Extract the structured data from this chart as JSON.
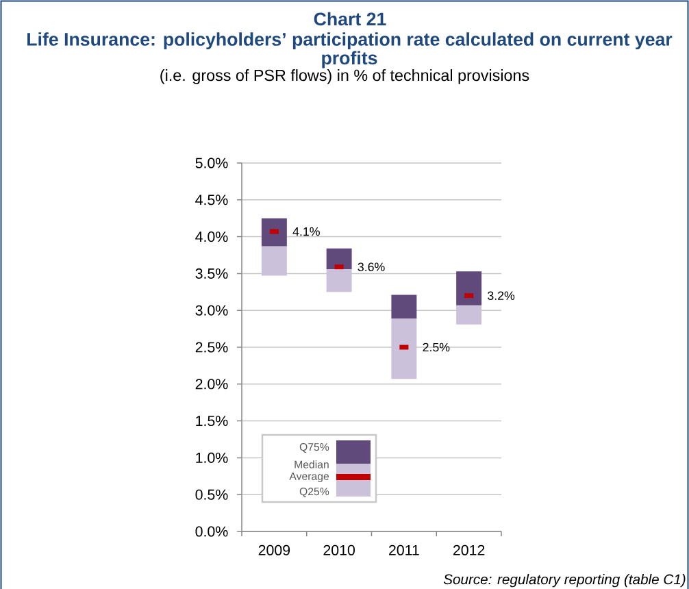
{
  "chart_data": {
    "type": "bar",
    "title": "Life Insurance: policyholders’ participation rate calculated on current year profits",
    "subtitle": "(i.e. gross of PSR flows) in % of technical provisions",
    "annotations": [
      "Chart 21",
      "Median",
      "Source: regulatory reporting (table C1)"
    ],
    "categories": [
      "2009",
      "2010",
      "2011",
      "2012"
    ],
    "series": [
      {
        "name": "Q25%",
        "color": "#ccc1da",
        "base": [
          3.47,
          3.25,
          2.07,
          2.81
        ],
        "values": [
          0.4,
          0.31,
          0.82,
          0.26
        ]
      },
      {
        "name": "Q75%",
        "color": "#604a7b",
        "base": [
          3.87,
          3.56,
          2.89,
          3.07
        ],
        "values": [
          0.38,
          0.28,
          0.32,
          0.46
        ]
      },
      {
        "type": "scatter",
        "name": "Average",
        "color": "#c00000",
        "values": [
          4.07,
          3.59,
          2.5,
          3.2
        ],
        "value_labels": [
          "4.1%",
          "3.6%",
          "2.5%",
          "3.2%"
        ]
      }
    ],
    "ylim": [
      0,
      5
    ],
    "yticks": [
      {
        "value": 0,
        "label": "0.0%"
      },
      {
        "value": 0.5,
        "label": "0.5%"
      },
      {
        "value": 1,
        "label": "1.0%"
      },
      {
        "value": 1.5,
        "label": "1.5%"
      },
      {
        "value": 2,
        "label": "2.0%"
      },
      {
        "value": 2.5,
        "label": "2.5%"
      },
      {
        "value": 3,
        "label": "3.0%"
      },
      {
        "value": 3.5,
        "label": "3.5%"
      },
      {
        "value": 4,
        "label": "4.0%"
      },
      {
        "value": 4.5,
        "label": "4.5%"
      },
      {
        "value": 5,
        "label": "5.0%"
      }
    ],
    "grid": "y",
    "legend": "bottom left"
  }
}
